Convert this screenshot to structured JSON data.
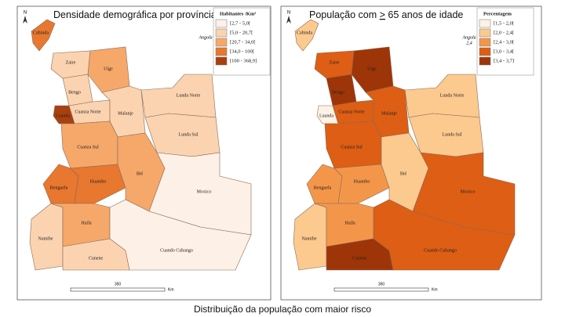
{
  "panels": [
    {
      "title": [
        "Densidade demográfica por província"
      ],
      "north": "N",
      "angola_label": [
        "Angola"
      ],
      "legend": {
        "title": "Habitantes /Km²",
        "items": [
          {
            "label": "[2,7 - 5,0[",
            "color": "#fdf0e6"
          },
          {
            "label": "[5,0 - 20,7[",
            "color": "#fbd3b0"
          },
          {
            "label": "[20,7 - 34,0[",
            "color": "#f6a86a"
          },
          {
            "label": "[34,0 - 100[",
            "color": "#e8772f"
          },
          {
            "label": "[100 - 368,9]",
            "color": "#a9400f"
          }
        ]
      },
      "scale": {
        "value": "350",
        "unit": "Km"
      },
      "provinces": [
        {
          "name": "Cabinda",
          "fill": "#e8772f"
        },
        {
          "name": "Zaire",
          "fill": "#fbd3b0"
        },
        {
          "name": "Uíge",
          "fill": "#f6a86a"
        },
        {
          "name": "Bengo",
          "fill": "#fbd3b0"
        },
        {
          "name": "Luanda",
          "fill": "#a9400f"
        },
        {
          "name": "Cuanza Norte",
          "fill": "#fbd3b0"
        },
        {
          "name": "Malanje",
          "fill": "#fbd3b0"
        },
        {
          "name": "Lunda Norte",
          "fill": "#fbd3b0"
        },
        {
          "name": "Lunda Sul",
          "fill": "#fbd3b0"
        },
        {
          "name": "Cuanza Sul",
          "fill": "#f6a86a"
        },
        {
          "name": "Benguela",
          "fill": "#e8772f"
        },
        {
          "name": "Huambo",
          "fill": "#e8772f"
        },
        {
          "name": "Bié",
          "fill": "#f6a86a"
        },
        {
          "name": "Moxico",
          "fill": "#fdf0e6"
        },
        {
          "name": "Namibe",
          "fill": "#fbd3b0"
        },
        {
          "name": "Huíla",
          "fill": "#f6a86a"
        },
        {
          "name": "Cunene",
          "fill": "#fbd3b0"
        },
        {
          "name": "Cuando Cubango",
          "fill": "#fdf0e6"
        }
      ]
    },
    {
      "title": [
        "População com ",
        ">",
        " 65 anos de idade"
      ],
      "north": "N",
      "angola_label": [
        "Angola",
        "2,4"
      ],
      "legend": {
        "title": "Percentagem",
        "items": [
          {
            "label": "[1,5 - 2,0[",
            "color": "#fef2e6"
          },
          {
            "label": "[2,0 - 2,4[",
            "color": "#fcc98f"
          },
          {
            "label": "[2,4 - 3,0[",
            "color": "#f4964a"
          },
          {
            "label": "[3,0 - 3,4[",
            "color": "#dd5e14"
          },
          {
            "label": "[3,4 - 3,7]",
            "color": "#9e3508"
          }
        ]
      },
      "scale": {
        "value": "350",
        "unit": "Km"
      },
      "provinces": [
        {
          "name": "Cabinda",
          "fill": "#fcc98f"
        },
        {
          "name": "Zaire",
          "fill": "#dd5e14"
        },
        {
          "name": "Uíge",
          "fill": "#9e3508"
        },
        {
          "name": "Bengo",
          "fill": "#9e3508"
        },
        {
          "name": "Luanda",
          "fill": "#fef2e6"
        },
        {
          "name": "Cuanza Norte",
          "fill": "#dd5e14"
        },
        {
          "name": "Malanje",
          "fill": "#dd5e14"
        },
        {
          "name": "Lunda Norte",
          "fill": "#fcc98f"
        },
        {
          "name": "Lunda Sul",
          "fill": "#fcc98f"
        },
        {
          "name": "Cuanza Sul",
          "fill": "#dd5e14"
        },
        {
          "name": "Benguela",
          "fill": "#f4964a"
        },
        {
          "name": "Huambo",
          "fill": "#f4964a"
        },
        {
          "name": "Bié",
          "fill": "#fcc98f"
        },
        {
          "name": "Moxico",
          "fill": "#dd5e14"
        },
        {
          "name": "Namibe",
          "fill": "#fcc98f"
        },
        {
          "name": "Huíla",
          "fill": "#f4964a"
        },
        {
          "name": "Cunene",
          "fill": "#9e3508"
        },
        {
          "name": "Cuando Cubango",
          "fill": "#dd5e14"
        }
      ]
    }
  ],
  "caption": "Distribuição da população com maior risco"
}
